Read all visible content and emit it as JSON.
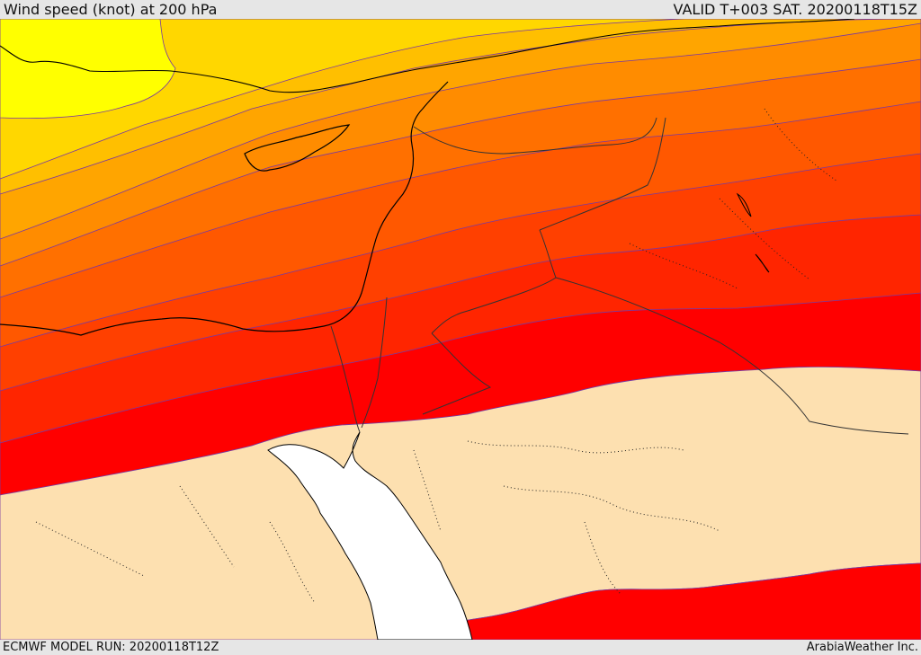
{
  "header": {
    "title": "Wind speed (knot) at 200 hPa",
    "valid": "VALID T+003 SAT. 20200118T15Z"
  },
  "footer": {
    "model_run": "ECMWF MODEL RUN: 20200118T12Z",
    "credit": "ArabiaWeather Inc."
  },
  "map": {
    "variable": "wind speed at 200 hPa",
    "style": "filled contour bands over region map with coastlines and borders",
    "band_colors": [
      "#ffff00",
      "#ffd700",
      "#ffbf00",
      "#ffa500",
      "#ff8c00",
      "#ff7000",
      "#ff5800",
      "#ff4000",
      "#ff2500",
      "#ff0000"
    ],
    "low_speed_fill": "#fde0b0",
    "sea_fill": "#ffffff",
    "coastline_color": "#000000"
  }
}
